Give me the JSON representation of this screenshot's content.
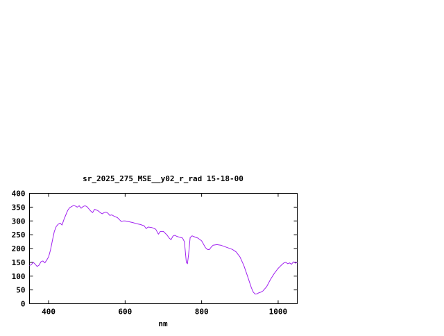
{
  "window": {
    "background": "#ffffff"
  },
  "chart_data": {
    "type": "line",
    "title": "sr_2025_275_MSE__y02_r_rad 15-18-00",
    "xlabel": "nm",
    "ylabel": "",
    "xlim": [
      350,
      1050
    ],
    "ylim": [
      0,
      400
    ],
    "x_ticks": [
      400,
      600,
      800,
      1000
    ],
    "y_ticks": [
      0,
      50,
      100,
      150,
      200,
      250,
      300,
      350,
      400
    ],
    "grid": false,
    "legend": "none",
    "line_color": "#a020f0",
    "frame_color": "#000000",
    "series": [
      {
        "name": "sr_2025_275_MSE__y02_r_rad",
        "x": [
          350,
          355,
          360,
          365,
          370,
          375,
          380,
          385,
          390,
          395,
          400,
          405,
          410,
          415,
          420,
          425,
          430,
          435,
          440,
          445,
          450,
          455,
          460,
          465,
          470,
          475,
          480,
          485,
          490,
          495,
          500,
          505,
          510,
          515,
          520,
          525,
          530,
          535,
          540,
          545,
          550,
          555,
          560,
          565,
          570,
          575,
          580,
          585,
          590,
          595,
          600,
          610,
          620,
          630,
          640,
          650,
          655,
          660,
          670,
          680,
          687,
          692,
          700,
          705,
          710,
          715,
          720,
          725,
          730,
          735,
          740,
          745,
          750,
          755,
          760,
          763,
          766,
          770,
          775,
          780,
          790,
          800,
          810,
          815,
          820,
          825,
          830,
          840,
          850,
          860,
          870,
          880,
          890,
          900,
          910,
          920,
          930,
          935,
          940,
          945,
          950,
          955,
          960,
          970,
          980,
          990,
          1000,
          1005,
          1010,
          1015,
          1020,
          1025,
          1030,
          1035,
          1040,
          1045,
          1050
        ],
        "y": [
          138,
          142,
          150,
          143,
          135,
          140,
          152,
          155,
          148,
          158,
          170,
          195,
          230,
          262,
          280,
          288,
          292,
          285,
          305,
          322,
          338,
          348,
          352,
          356,
          354,
          350,
          355,
          346,
          352,
          355,
          352,
          344,
          336,
          330,
          342,
          340,
          336,
          330,
          326,
          330,
          332,
          328,
          320,
          322,
          318,
          315,
          312,
          305,
          298,
          300,
          300,
          297,
          294,
          290,
          287,
          282,
          272,
          278,
          276,
          270,
          252,
          262,
          262,
          255,
          248,
          238,
          232,
          245,
          248,
          244,
          242,
          240,
          238,
          225,
          150,
          145,
          180,
          240,
          246,
          243,
          238,
          228,
          203,
          197,
          196,
          205,
          212,
          214,
          212,
          207,
          202,
          197,
          188,
          170,
          140,
          100,
          58,
          42,
          35,
          36,
          40,
          42,
          46,
          62,
          88,
          110,
          128,
          135,
          142,
          148,
          150,
          145,
          148,
          143,
          152,
          147,
          150
        ]
      }
    ]
  }
}
